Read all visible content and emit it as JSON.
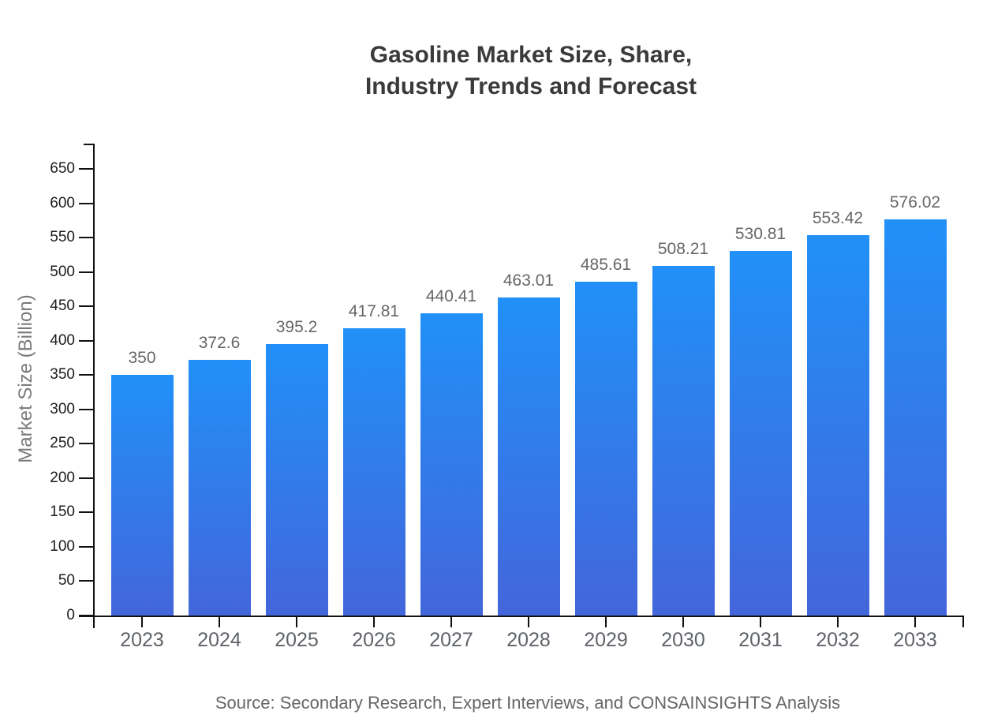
{
  "title": {
    "line1": "Gasoline Market Size, Share,",
    "line2": "Industry Trends and Forecast"
  },
  "source": "Source: Secondary Research, Expert Interviews, and CONSAINSIGHTS Analysis",
  "chart_data": {
    "type": "bar",
    "title": "Gasoline Market Size, Share, Industry Trends and Forecast",
    "categories": [
      "2023",
      "2024",
      "2025",
      "2026",
      "2027",
      "2028",
      "2029",
      "2030",
      "2031",
      "2032",
      "2033"
    ],
    "values": [
      350,
      372.6,
      395.2,
      417.81,
      440.41,
      463.01,
      485.61,
      508.21,
      530.81,
      553.42,
      576.02
    ],
    "bar_labels": [
      "350",
      "372.6",
      "395.2",
      "417.81",
      "440.41",
      "463.01",
      "485.61",
      "508.21",
      "530.81",
      "553.42",
      "576.02"
    ],
    "xlabel": "",
    "ylabel": "Market Size (Billion)",
    "ylim": [
      0,
      650
    ],
    "yticks": [
      0,
      50,
      100,
      150,
      200,
      250,
      300,
      350,
      400,
      450,
      500,
      550,
      600,
      650
    ],
    "grid": false,
    "legend": false,
    "colors": {
      "bar_gradient_top": "#2190f8",
      "bar_gradient_bottom": "#4366db",
      "title_text": "#3a3a3a",
      "axis": "#111111",
      "y_tick_label": "#1c1c1c",
      "x_category_label": "#5f6368",
      "value_label": "#666666",
      "source_text": "#666666"
    }
  }
}
